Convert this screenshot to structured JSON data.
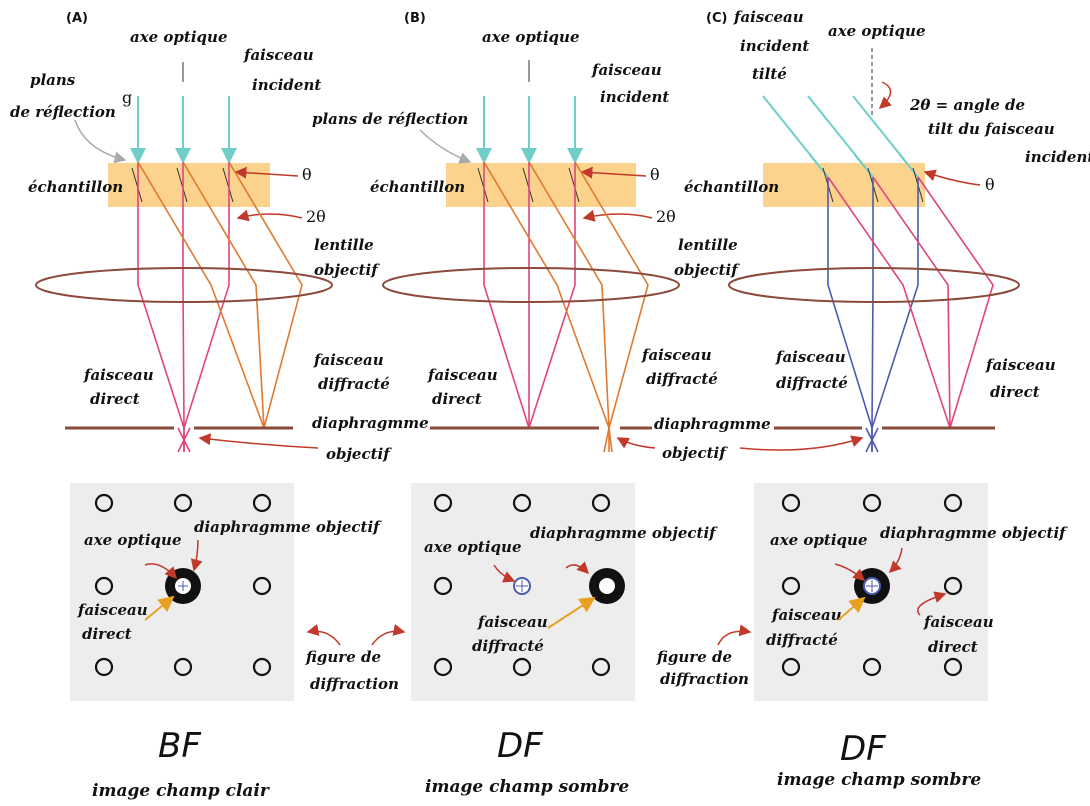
{
  "colors": {
    "specimen": "#FBD38C",
    "lens": "#8B4A3A",
    "diaphragm": "#8B4A3A",
    "incident": "#6FCFC8",
    "direct": "#E0457F",
    "diffracted": "#E07A30",
    "tilted_direct": "#4B5BB0",
    "arrow": "#C0392B",
    "arrow_gold": "#E8A020",
    "pattern_bg": "#EDEDED"
  },
  "panelA": {
    "tag": "(A)",
    "optic_axis": "axe optique",
    "incident_line1": "faisceau",
    "incident_line2": "incident",
    "g": "g",
    "planes_line1": "plans",
    "planes_line2": "de réflection",
    "specimen": "échantillon",
    "theta": "θ",
    "two_theta": "2θ",
    "lens_line1": "lentille",
    "lens_line2": "objectif",
    "direct_line1": "faisceau",
    "direct_line2": "direct",
    "diffracted_line1": "faisceau",
    "diffracted_line2": "diffracté",
    "diaphragm_line1": "diaphragmme",
    "diaphragm_line2": "objectif",
    "pat_axis": "axe optique",
    "pat_diaphragm": "diaphragmme objectif",
    "pat_beam_line1": "faisceau",
    "pat_beam_line2": "direct",
    "mode": "BF",
    "caption": "image champ clair"
  },
  "panelB": {
    "tag": "(B)",
    "optic_axis": "axe optique",
    "incident_line1": "faisceau",
    "incident_line2": "incident",
    "planes": "plans de réflection",
    "specimen": "échantillon",
    "theta": "θ",
    "two_theta": "2θ",
    "lens_line1": "lentille",
    "lens_line2": "objectif",
    "direct_line1": "faisceau",
    "direct_line2": "direct",
    "diffracted_line1": "faisceau",
    "diffracted_line2": "diffracté",
    "pat_axis": "axe optique",
    "pat_diaphragm": "diaphragmme objectif",
    "pat_beam_line1": "faisceau",
    "pat_beam_line2": "diffracté",
    "figure_line1": "figure de",
    "figure_line2": "diffraction",
    "mode": "DF",
    "caption": "image champ sombre"
  },
  "panelC": {
    "tag": "(C)",
    "tilted_line1": "faisceau",
    "tilted_line2": "incident",
    "tilted_line3": "tilté",
    "optic_axis": "axe optique",
    "tilt_line1": "2θ = angle de",
    "tilt_line2": "tilt du faisceau",
    "tilt_line3": "incident",
    "specimen": "échantillon",
    "theta": "θ",
    "direct_line1": "faisceau",
    "direct_line2": "direct",
    "diffracted_line1": "faisceau",
    "diffracted_line2": "diffracté",
    "pat_axis": "axe optique",
    "pat_diaphragm": "diaphragmme objectif",
    "pat_diffr_line1": "faisceau",
    "pat_diffr_line2": "diffracté",
    "pat_direct_line1": "faisceau",
    "pat_direct_line2": "direct",
    "figure_line1": "figure de",
    "figure_line2": "diffraction",
    "mode": "DF",
    "caption": "image champ sombre"
  }
}
